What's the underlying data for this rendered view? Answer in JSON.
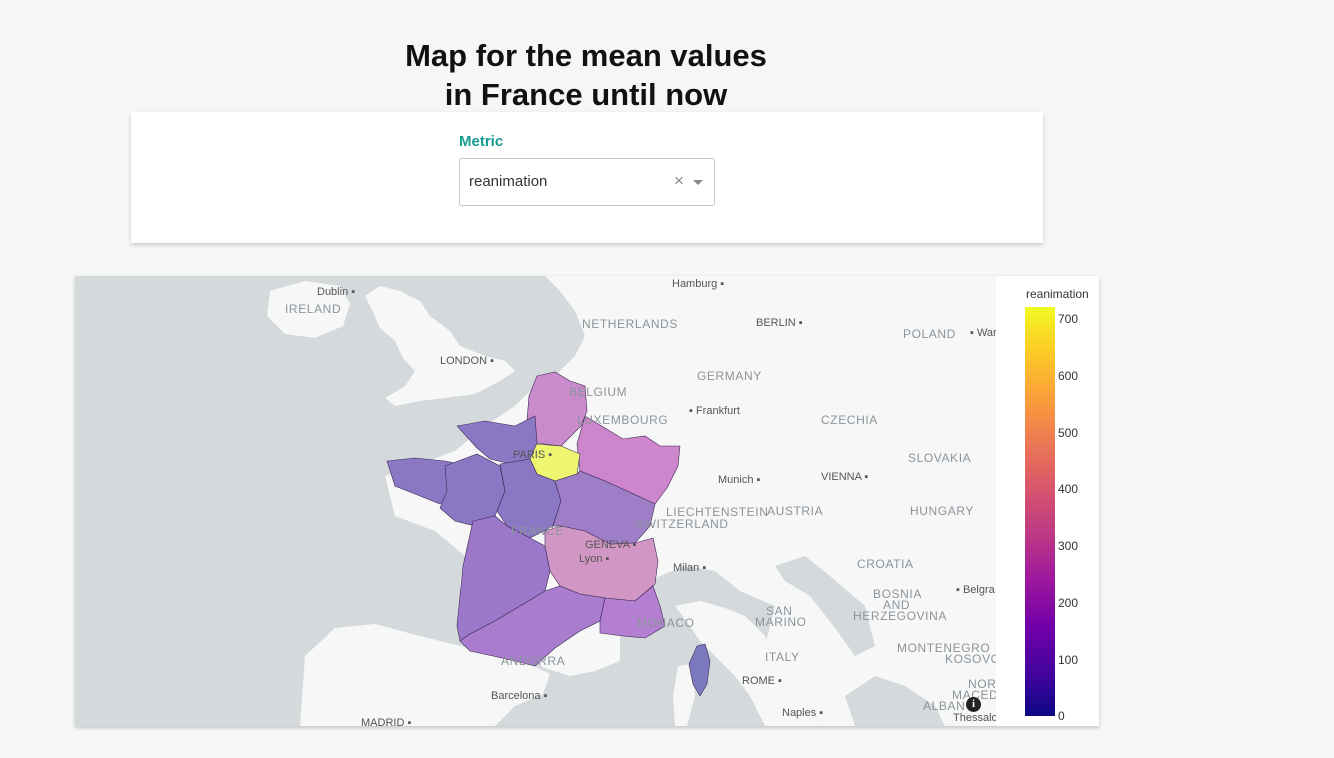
{
  "page": {
    "title_line1": "Map for the mean values",
    "title_line2": "in France until now"
  },
  "filter": {
    "label": "Metric",
    "selected": "reanimation",
    "clear_glyph": "×"
  },
  "map": {
    "info_glyph": "i",
    "countries": [
      "IRELAND",
      "NETHERLANDS",
      "BELGIUM",
      "LUXEMBOURG",
      "GERMANY",
      "CZECHIA",
      "POLAND",
      "SLOVAKIA",
      "HUNGARY",
      "AUSTRIA",
      "LIECHTENSTEIN",
      "SWITZERLAND",
      "FRANCE",
      "CROATIA",
      "BOSNIA",
      "AND",
      "HERZEGOVINA",
      "SAN",
      "MARINO",
      "ITALY",
      "MONTENEGRO",
      "KOSOVO",
      "MONACO",
      "ANDORRA",
      "NOR",
      "MACED",
      "ALBAN"
    ],
    "cities": [
      "Dublin",
      "LONDON",
      "Hamburg",
      "BERLIN",
      "Frankfurt",
      "Munich",
      "VIENNA",
      "PARIS",
      "GENEVA",
      "Lyon",
      "Milan",
      "ROME",
      "Naples",
      "Barcelona",
      "MADRID",
      "Belgra",
      "Thessalo",
      "War"
    ],
    "colors": {
      "ile_de_france": "#eef571",
      "grand_est": "#cd86cc",
      "hauts_de_france": "#c98bcb",
      "aura": "#d296c4",
      "paca": "#b47fd0",
      "occitanie": "#aa7ccd",
      "nouvelle_aquitaine": "#9c78cb",
      "west": "#8a78c4",
      "corse": "#7d79c0"
    }
  },
  "legend": {
    "title": "reanimation",
    "ticks": [
      "700",
      "600",
      "500",
      "400",
      "300",
      "200",
      "100",
      "0"
    ],
    "colorscale": "Plasma"
  }
}
